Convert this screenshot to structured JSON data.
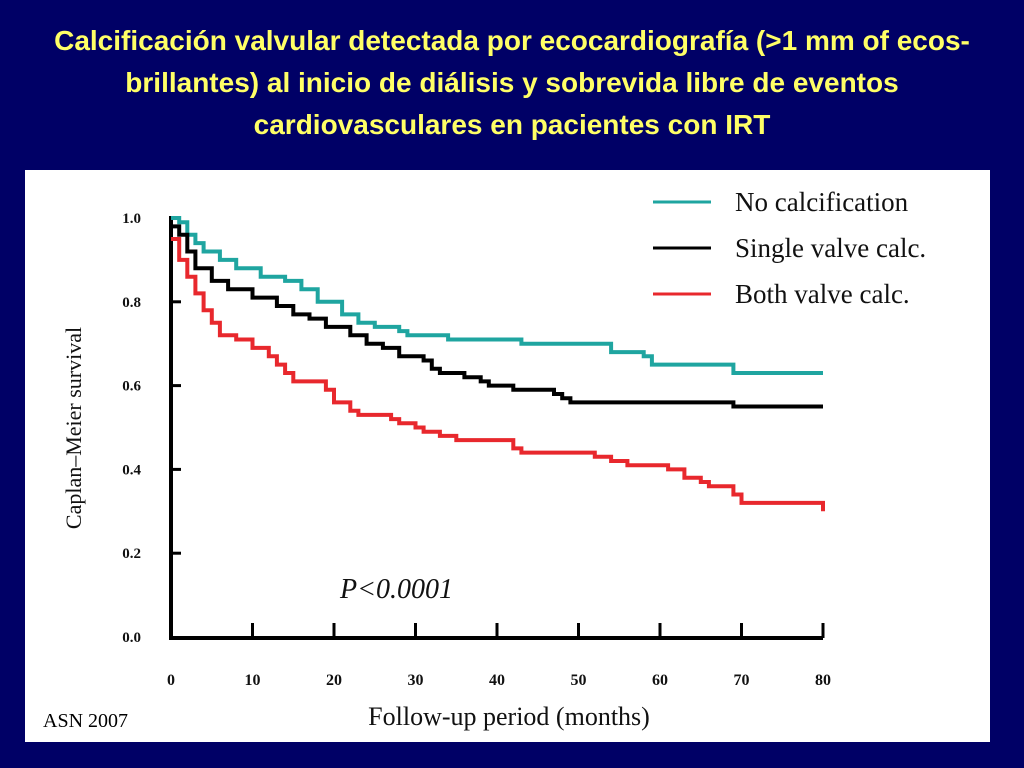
{
  "slide": {
    "title": "Calcificación valvular detectada por ecocardiografía (>1 mm of ecos-brillantes) al inicio de diálisis y sobrevida libre de eventos cardiovasculares en pacientes con IRT",
    "source": "ASN 2007"
  },
  "chart_data": {
    "type": "line",
    "step": true,
    "xlabel": "Follow-up period (months)",
    "ylabel": "Caplan–Meier survival",
    "xlim": [
      0,
      80
    ],
    "ylim": [
      0,
      1.0
    ],
    "x_ticks": [
      "0",
      "10",
      "20",
      "30",
      "40",
      "50",
      "60",
      "70",
      "80"
    ],
    "y_ticks": [
      "0.0",
      "0.2",
      "0.4",
      "0.6",
      "0.8",
      "1.0"
    ],
    "annotation": "P<0.0001",
    "legend_position": "top-right",
    "grid": false,
    "series": [
      {
        "name": "No calcification",
        "color": "#1fa5a0",
        "points": [
          [
            0,
            1.0
          ],
          [
            1,
            0.99
          ],
          [
            2,
            0.96
          ],
          [
            3,
            0.94
          ],
          [
            4,
            0.92
          ],
          [
            6,
            0.9
          ],
          [
            8,
            0.88
          ],
          [
            11,
            0.86
          ],
          [
            14,
            0.85
          ],
          [
            16,
            0.83
          ],
          [
            18,
            0.8
          ],
          [
            21,
            0.77
          ],
          [
            23,
            0.75
          ],
          [
            25,
            0.74
          ],
          [
            28,
            0.73
          ],
          [
            29,
            0.72
          ],
          [
            34,
            0.72
          ],
          [
            34,
            0.71
          ],
          [
            43,
            0.71
          ],
          [
            43,
            0.7
          ],
          [
            53,
            0.7
          ],
          [
            54,
            0.68
          ],
          [
            58,
            0.67
          ],
          [
            59,
            0.65
          ],
          [
            64,
            0.65
          ],
          [
            68,
            0.65
          ],
          [
            69,
            0.63
          ],
          [
            80,
            0.63
          ]
        ]
      },
      {
        "name": "Single valve calc.",
        "color": "#000000",
        "points": [
          [
            0,
            0.98
          ],
          [
            1,
            0.96
          ],
          [
            2,
            0.92
          ],
          [
            3,
            0.88
          ],
          [
            5,
            0.85
          ],
          [
            7,
            0.83
          ],
          [
            10,
            0.81
          ],
          [
            13,
            0.79
          ],
          [
            15,
            0.77
          ],
          [
            17,
            0.76
          ],
          [
            19,
            0.74
          ],
          [
            22,
            0.72
          ],
          [
            24,
            0.7
          ],
          [
            26,
            0.69
          ],
          [
            28,
            0.67
          ],
          [
            31,
            0.66
          ],
          [
            32,
            0.64
          ],
          [
            33,
            0.63
          ],
          [
            36,
            0.62
          ],
          [
            38,
            0.61
          ],
          [
            39,
            0.6
          ],
          [
            42,
            0.59
          ],
          [
            47,
            0.58
          ],
          [
            48,
            0.57
          ],
          [
            49,
            0.56
          ],
          [
            65,
            0.56
          ],
          [
            69,
            0.55
          ],
          [
            80,
            0.55
          ]
        ]
      },
      {
        "name": "Both valve calc.",
        "color": "#e8282d",
        "points": [
          [
            0,
            0.95
          ],
          [
            1,
            0.9
          ],
          [
            2,
            0.86
          ],
          [
            3,
            0.82
          ],
          [
            4,
            0.78
          ],
          [
            5,
            0.75
          ],
          [
            6,
            0.72
          ],
          [
            8,
            0.71
          ],
          [
            10,
            0.69
          ],
          [
            12,
            0.67
          ],
          [
            13,
            0.65
          ],
          [
            14,
            0.63
          ],
          [
            15,
            0.61
          ],
          [
            18,
            0.61
          ],
          [
            19,
            0.59
          ],
          [
            20,
            0.56
          ],
          [
            22,
            0.54
          ],
          [
            23,
            0.53
          ],
          [
            27,
            0.52
          ],
          [
            28,
            0.51
          ],
          [
            30,
            0.5
          ],
          [
            31,
            0.49
          ],
          [
            33,
            0.48
          ],
          [
            35,
            0.47
          ],
          [
            37,
            0.47
          ],
          [
            42,
            0.45
          ],
          [
            43,
            0.44
          ],
          [
            48,
            0.44
          ],
          [
            52,
            0.43
          ],
          [
            54,
            0.42
          ],
          [
            56,
            0.41
          ],
          [
            61,
            0.4
          ],
          [
            63,
            0.38
          ],
          [
            65,
            0.37
          ],
          [
            66,
            0.36
          ],
          [
            69,
            0.34
          ],
          [
            70,
            0.32
          ],
          [
            79,
            0.32
          ],
          [
            80,
            0.3
          ]
        ]
      }
    ]
  }
}
